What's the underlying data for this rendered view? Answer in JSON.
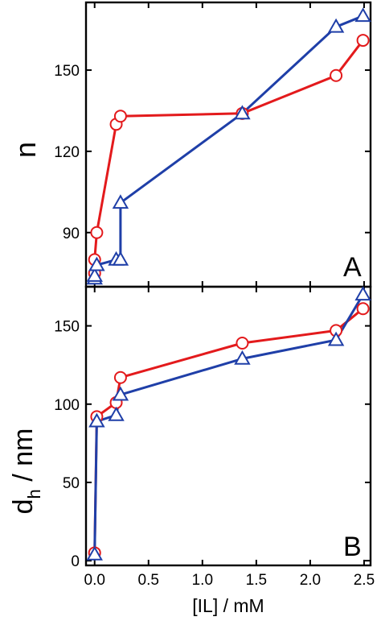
{
  "colors": {
    "series_red": "#e31a1c",
    "series_blue": "#1f3fa8"
  },
  "chart_data": [
    {
      "type": "line",
      "panel_label": "A",
      "ylabel": "n",
      "xlabel": "",
      "xlim": [
        -0.08,
        2.56
      ],
      "ylim": [
        70,
        175
      ],
      "yticks": [
        90,
        120,
        150
      ],
      "ytick_labels": [
        "90",
        "120",
        "150"
      ],
      "xticks": [
        0.0,
        0.5,
        1.0,
        1.5,
        2.0,
        2.5
      ],
      "grid": false,
      "series": [
        {
          "color": "#e31a1c",
          "marker": "circle",
          "x": [
            0.0,
            0.0,
            0.02,
            0.2,
            0.24,
            1.37,
            2.24,
            2.49
          ],
          "y": [
            75,
            80,
            90,
            130,
            133,
            134,
            148,
            161
          ]
        },
        {
          "color": "#1f3fa8",
          "marker": "triangle",
          "x": [
            0.0,
            0.0,
            0.02,
            0.2,
            0.24,
            0.24,
            1.37,
            2.24,
            2.49
          ],
          "y": [
            73,
            74,
            78,
            80,
            80,
            101,
            134,
            166,
            170
          ]
        }
      ]
    },
    {
      "type": "line",
      "panel_label": "B",
      "ylabel": "d_h / nm",
      "ylabel_main": "d",
      "ylabel_sub": "h",
      "ylabel_rest": " / nm",
      "xlabel": "[IL] / mM",
      "xlim": [
        -0.08,
        2.56
      ],
      "ylim": [
        -3,
        175
      ],
      "yticks": [
        0,
        50,
        100,
        150
      ],
      "ytick_labels": [
        "0",
        "50",
        "100",
        "150"
      ],
      "xticks": [
        0.0,
        0.5,
        1.0,
        1.5,
        2.0,
        2.5
      ],
      "xtick_labels": [
        "0.0",
        "0.5",
        "1.0",
        "1.5",
        "2.0",
        "2.5"
      ],
      "grid": false,
      "series": [
        {
          "color": "#e31a1c",
          "marker": "circle",
          "x": [
            0.0,
            0.02,
            0.2,
            0.24,
            1.37,
            2.24,
            2.49
          ],
          "y": [
            5,
            92,
            101,
            117,
            139,
            147,
            161
          ]
        },
        {
          "color": "#1f3fa8",
          "marker": "triangle",
          "x": [
            0.0,
            0.02,
            0.2,
            0.24,
            1.37,
            2.24,
            2.49
          ],
          "y": [
            4,
            89,
            93,
            106,
            129,
            141,
            170
          ]
        }
      ]
    }
  ]
}
